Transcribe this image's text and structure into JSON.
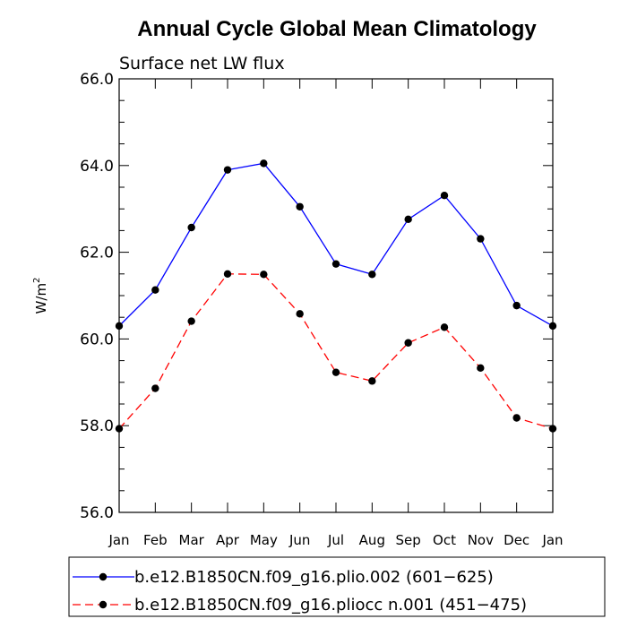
{
  "chart_data": {
    "type": "line",
    "title": "Annual Cycle Global Mean Climatology",
    "subtitle": "Surface net LW flux",
    "xlabel": "",
    "ylabel": "W/m",
    "ylabel_superscript": "2",
    "categories": [
      "Jan",
      "Feb",
      "Mar",
      "Apr",
      "May",
      "Jun",
      "Jul",
      "Aug",
      "Sep",
      "Oct",
      "Nov",
      "Dec",
      "Jan"
    ],
    "ylim": [
      56.0,
      66.0
    ],
    "yticks": [
      56.0,
      58.0,
      60.0,
      62.0,
      64.0,
      66.0
    ],
    "ytick_labels": [
      "56.0",
      "58.0",
      "60.0",
      "62.0",
      "64.0",
      "66.0"
    ],
    "grid": false,
    "legend_position": "bottom",
    "series": [
      {
        "name": "b.e12.B1850CN.f09_g16.plio.002 (601−625)",
        "color": "#0000ff",
        "style": "solid",
        "values": [
          60.3,
          61.13,
          62.57,
          63.9,
          64.05,
          63.05,
          61.73,
          61.49,
          62.76,
          63.31,
          62.31,
          60.77,
          60.3
        ]
      },
      {
        "name": "b.e12.B1850CN.f09_g16.pliocc n.001 (451−475)",
        "color": "#ff0000",
        "style": "dashed",
        "values": [
          57.93,
          58.86,
          60.41,
          61.5,
          61.49,
          60.58,
          59.23,
          59.03,
          59.91,
          60.27,
          59.33,
          58.18,
          57.93
        ]
      }
    ]
  }
}
